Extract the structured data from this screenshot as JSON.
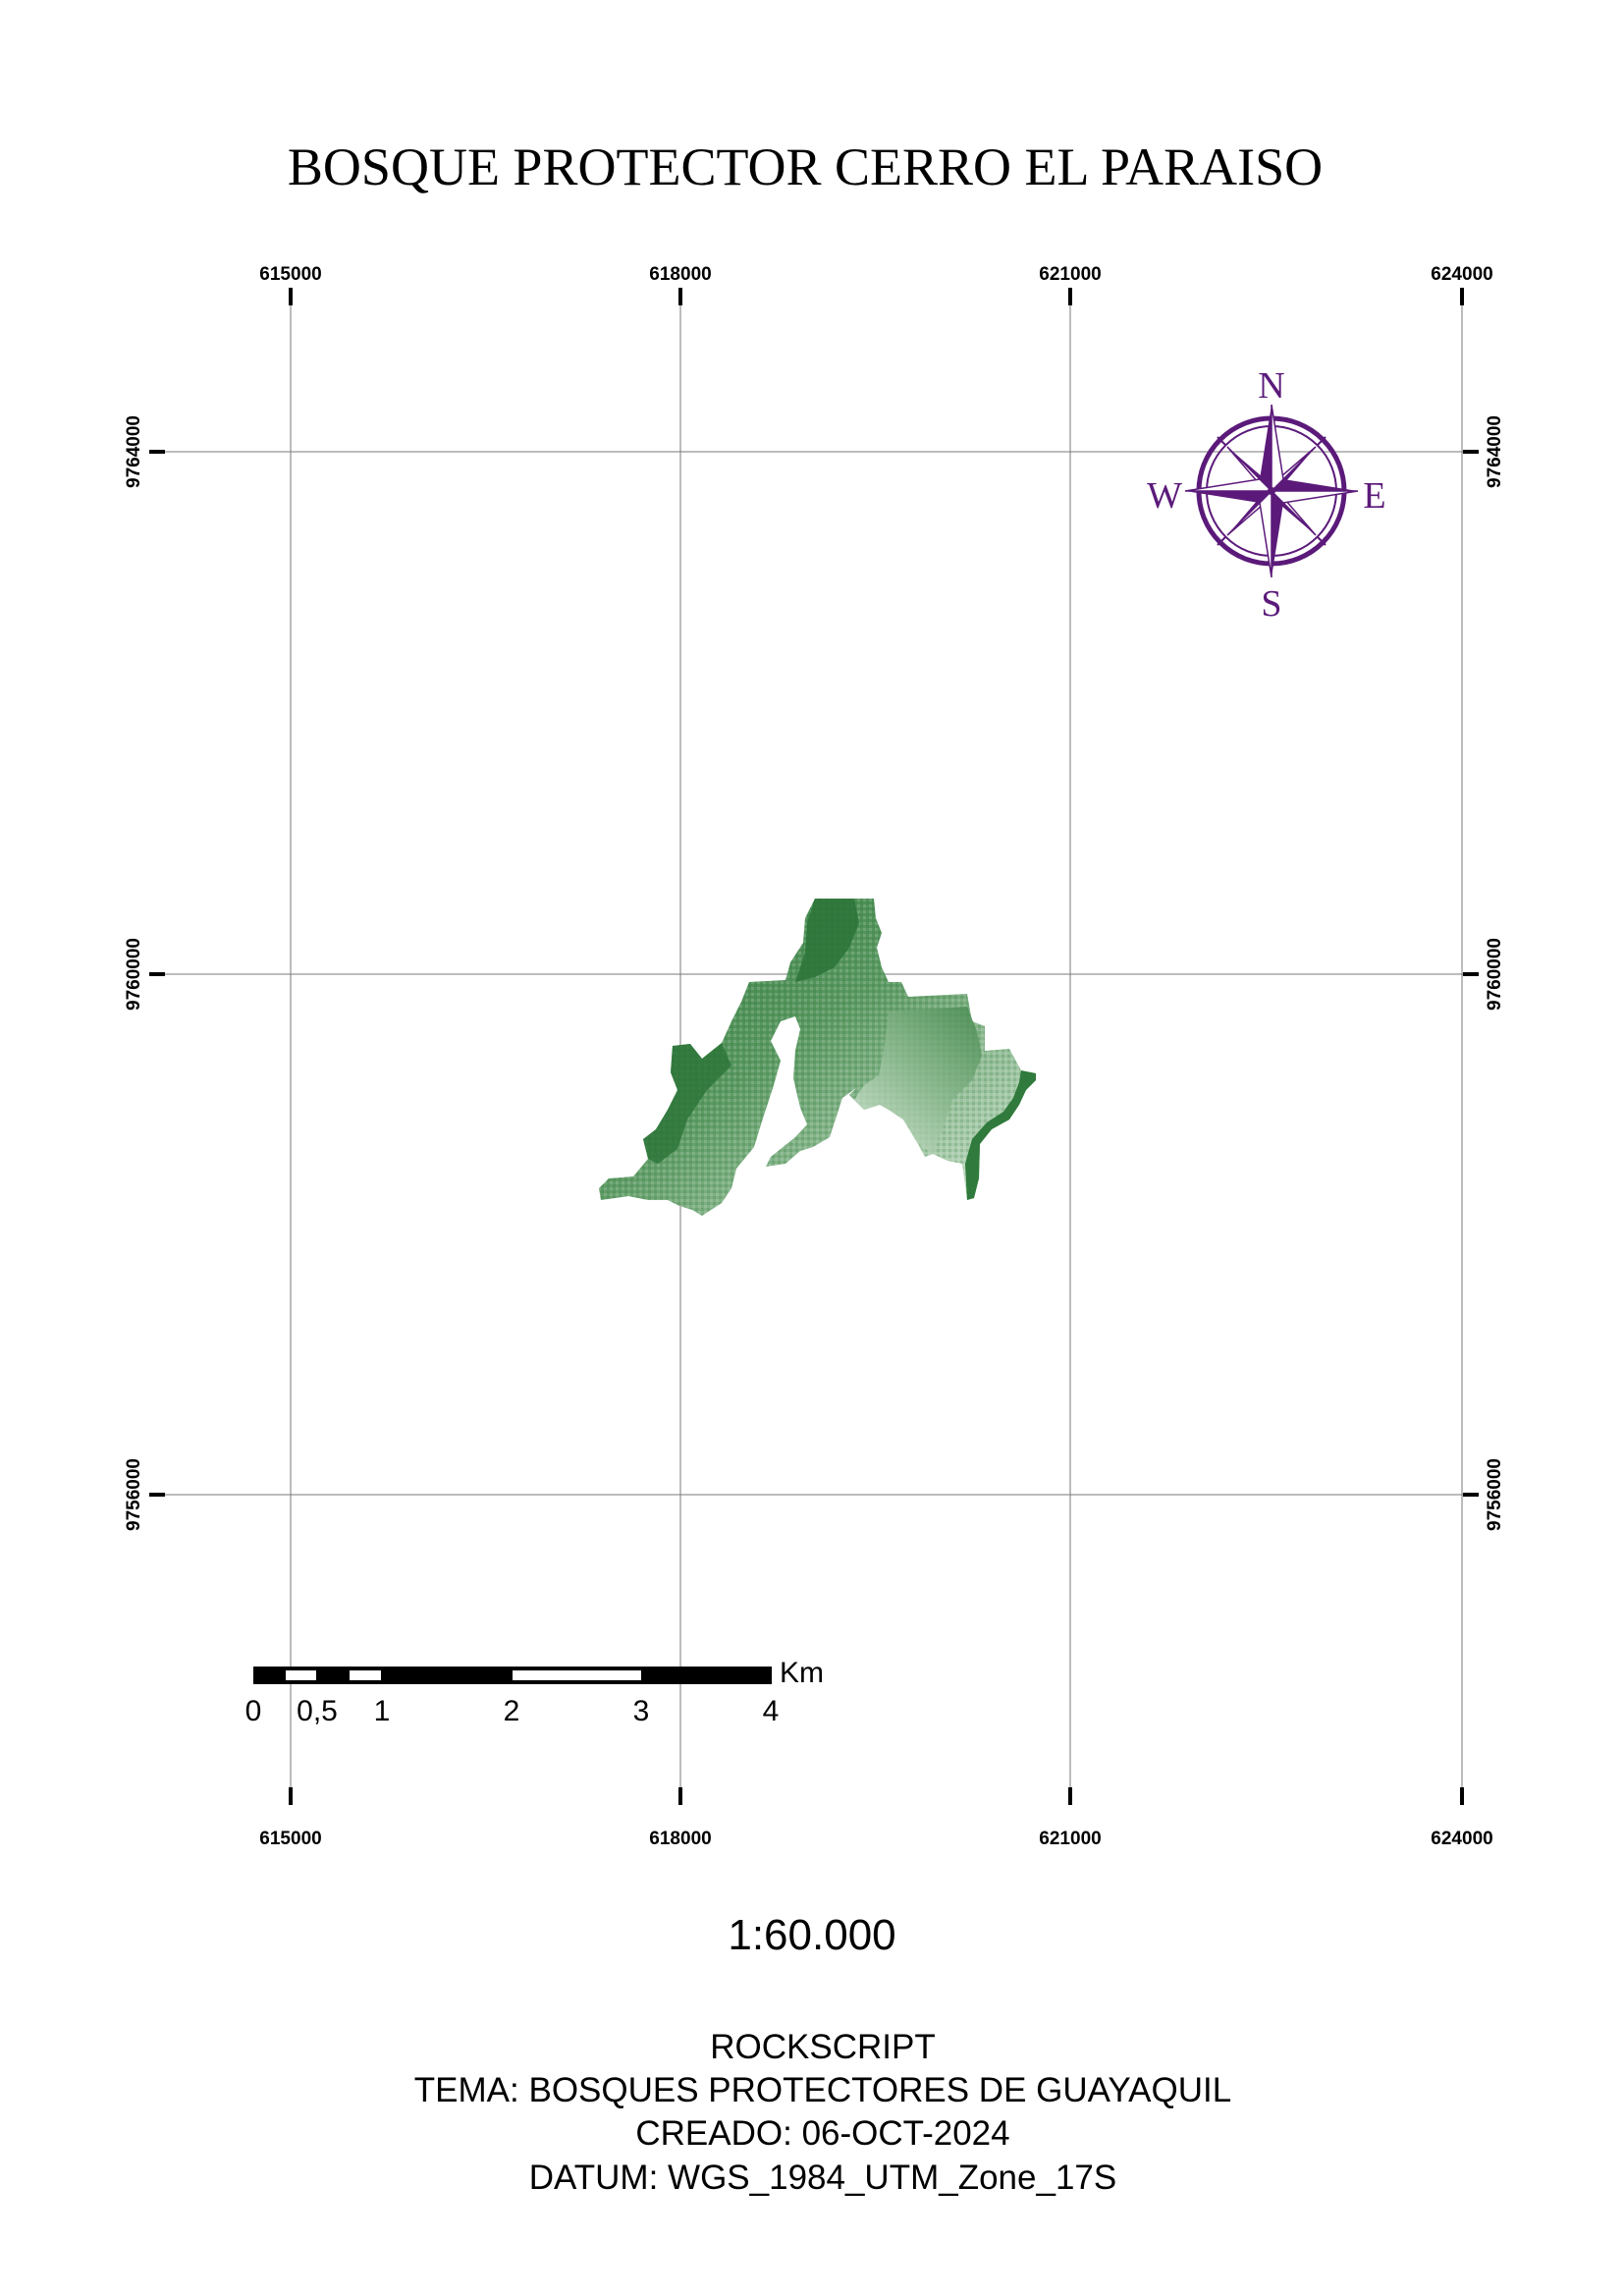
{
  "map": {
    "title": "BOSQUE PROTECTOR CERRO EL PARAISO",
    "grid": {
      "x_labels": [
        "615000",
        "618000",
        "621000",
        "624000"
      ],
      "y_labels": [
        "9764000",
        "9760000",
        "9756000"
      ]
    },
    "north_arrow": {
      "n": "N",
      "s": "S",
      "e": "E",
      "w": "W",
      "color": "#5b1a7a"
    },
    "scale_bar": {
      "unit": "Km",
      "labels": [
        "0",
        "0,5",
        "1",
        "2",
        "3",
        "4"
      ]
    },
    "scale_ratio": "1:60.000",
    "info": {
      "author": "ROCKSCRIPT",
      "theme": "TEMA: BOSQUES PROTECTORES DE GUAYAQUIL",
      "created": "CREADO: 06-OCT-2024",
      "datum": "DATUM: WGS_1984_UTM_Zone_17S"
    },
    "forest_colors": {
      "dark": "#2f7a3c",
      "mid": "#5c9a63",
      "light": "#cfe6d0"
    }
  }
}
